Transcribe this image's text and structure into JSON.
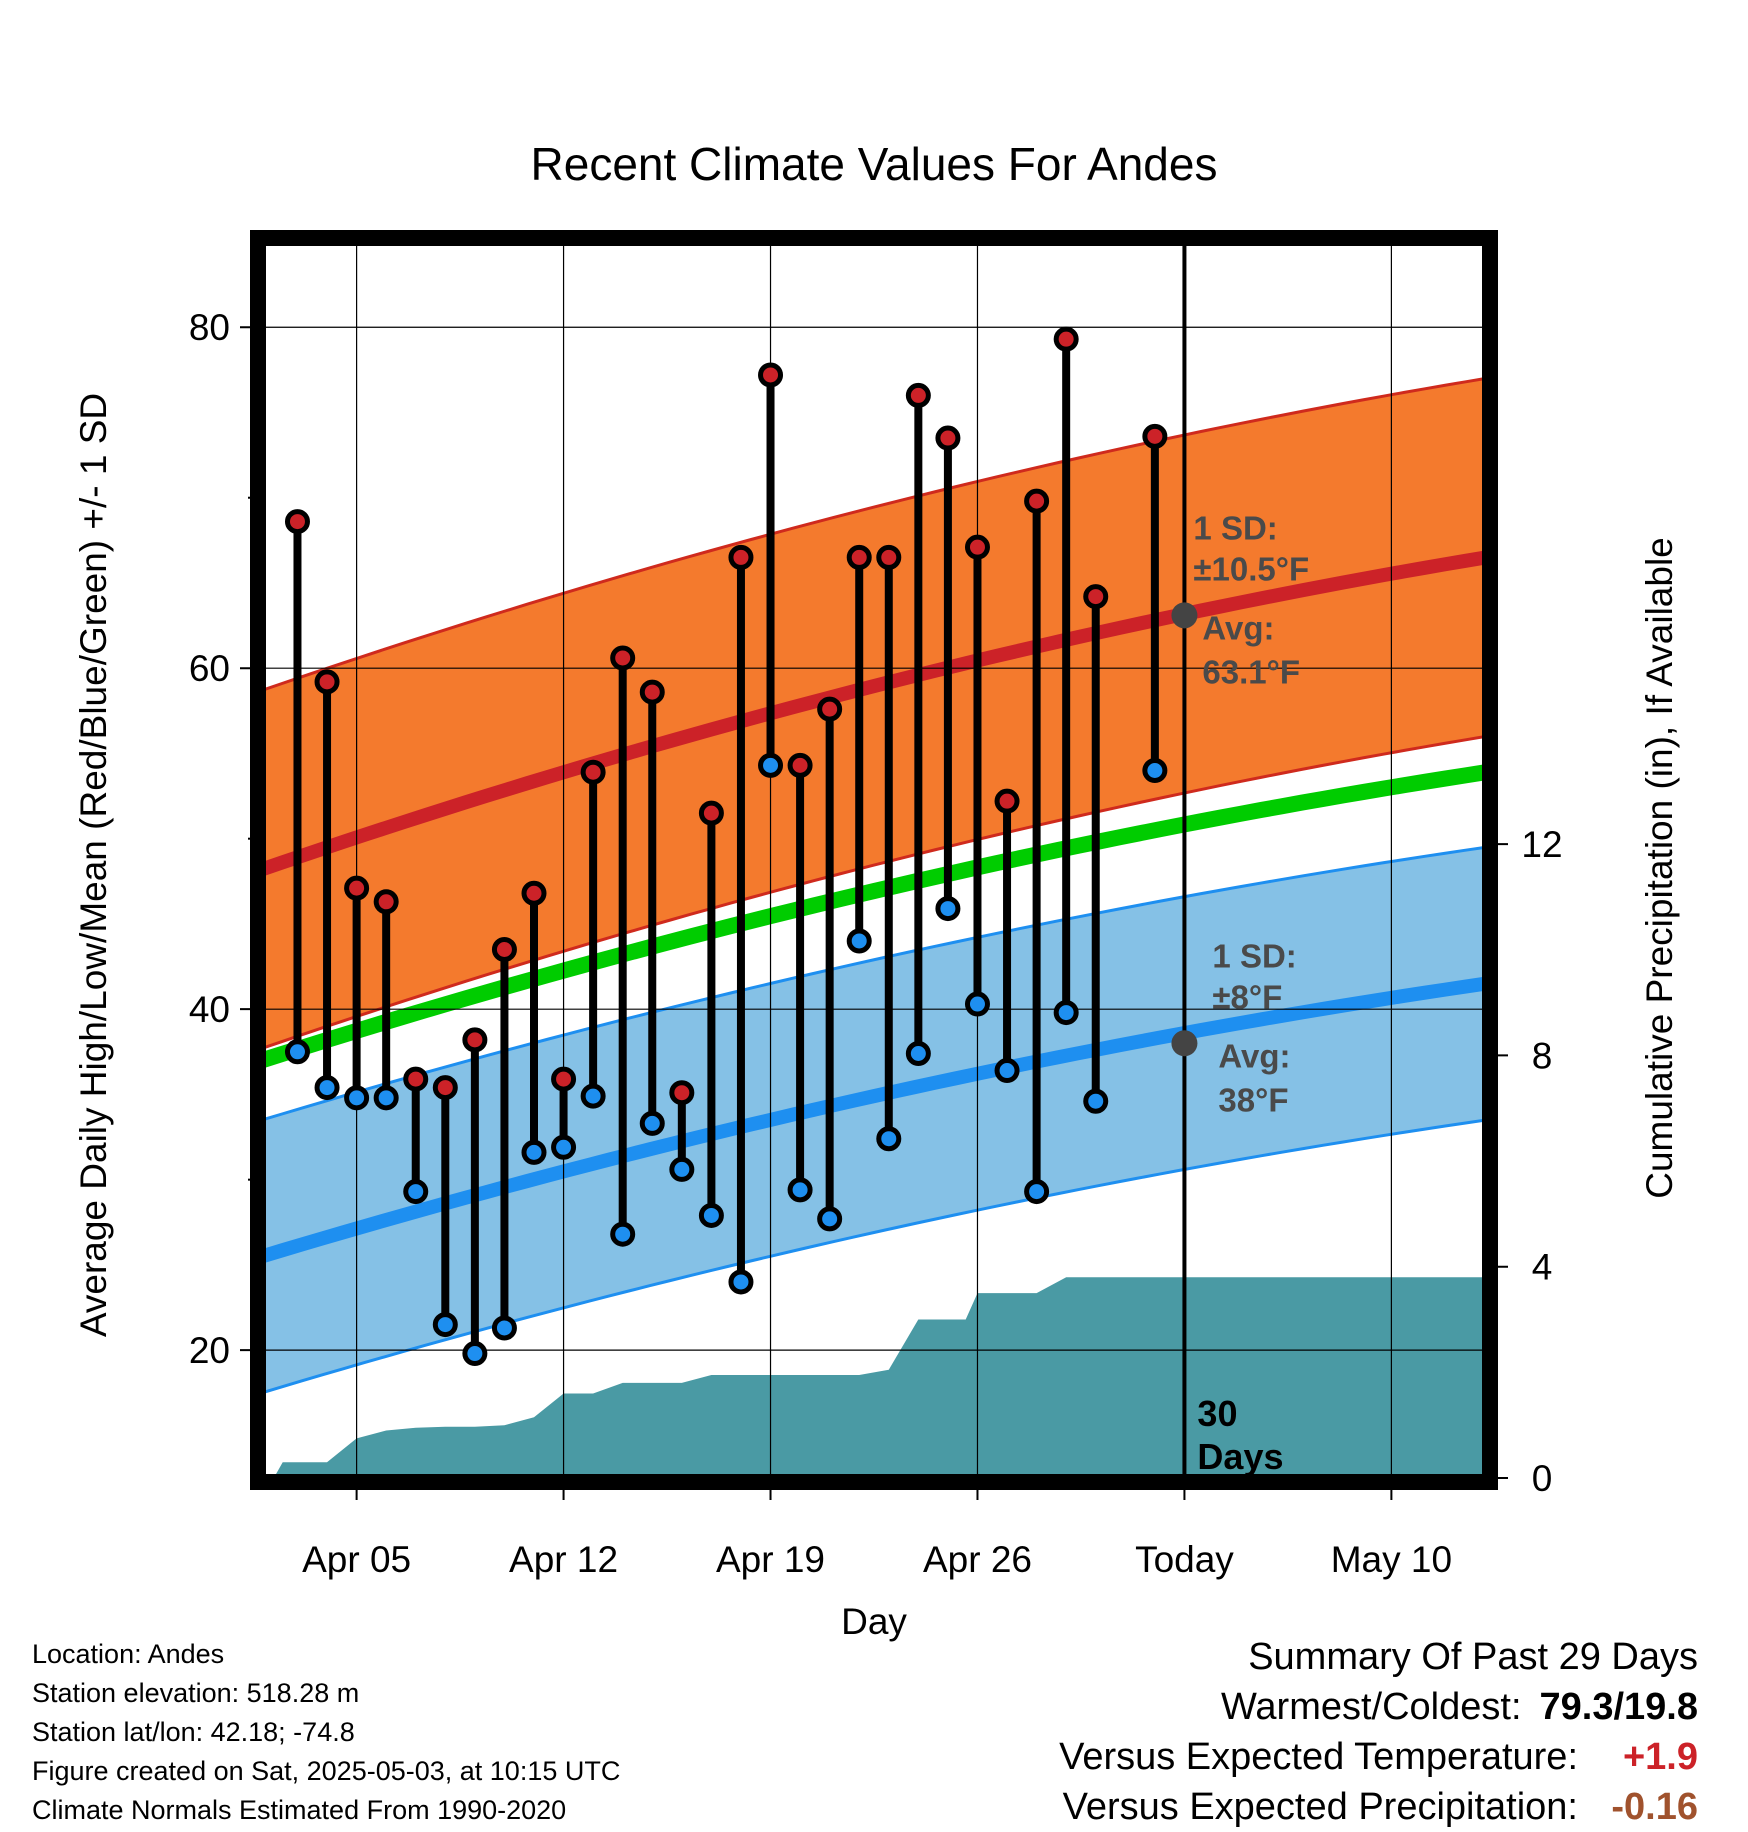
{
  "chart_data": {
    "type": "climate",
    "title": "Recent Climate Values For Andes",
    "xlabel": "Day",
    "ylabel_left": "Average Daily High/Low/Mean (Red/Blue/Green) +/- 1 SD",
    "ylabel_right": "Cumulative Precipitation (in), If Available",
    "x_ticks": [
      {
        "day": 4,
        "label": "Apr 05"
      },
      {
        "day": 11,
        "label": "Apr 12"
      },
      {
        "day": 18,
        "label": "Apr 19"
      },
      {
        "day": 25,
        "label": "Apr 26"
      },
      {
        "day": 32,
        "label": "Today"
      },
      {
        "day": 39,
        "label": "May 10"
      }
    ],
    "y_left_ticks": [
      20,
      40,
      60,
      80
    ],
    "y_right_ticks": [
      0,
      4,
      8,
      12
    ],
    "xlim": [
      0.8,
      42.2
    ],
    "ylim_left": [
      12.5,
      85
    ],
    "ylim_right": [
      0,
      23.4
    ],
    "grid": true,
    "today_day": 32,
    "today_label": "30\nDays",
    "normals": {
      "x": [
        0.8,
        42.2
      ],
      "high_mean": [
        48.2,
        66.5
      ],
      "high_sd": 10.5,
      "mean": [
        37.0,
        53.9
      ],
      "low_mean": [
        25.5,
        41.5
      ],
      "low_sd": 8,
      "high_label_sd": "1 SD:\n±10.5°F",
      "high_label_avg": "Avg:\n63.1°F",
      "high_avg_value": 63.1,
      "low_label_sd": "1 SD:\n±8°F",
      "low_label_avg": "Avg:\n38°F",
      "low_avg_value": 38
    },
    "series": [
      {
        "name": "High",
        "days": [
          2,
          3,
          4,
          5,
          6,
          7,
          8,
          9,
          10,
          11,
          12,
          13,
          14,
          15,
          16,
          17,
          18,
          19,
          20,
          21,
          22,
          23,
          24,
          25,
          26,
          27,
          28,
          29,
          30,
          31
        ],
        "values": [
          68.6,
          59.2,
          47.1,
          46.3,
          35.9,
          35.4,
          38.2,
          43.5,
          46.8,
          35.9,
          53.9,
          60.6,
          58.6,
          35.1,
          51.5,
          66.5,
          77.2,
          54.3,
          57.6,
          66.5,
          66.5,
          76.0,
          73.5,
          67.1,
          52.2,
          69.8,
          79.3,
          64.2,
          null,
          73.6
        ]
      },
      {
        "name": "Low",
        "days": [
          2,
          3,
          4,
          5,
          6,
          7,
          8,
          9,
          10,
          11,
          12,
          13,
          14,
          15,
          16,
          17,
          18,
          19,
          20,
          21,
          22,
          23,
          24,
          25,
          26,
          27,
          28,
          29,
          30,
          31
        ],
        "values": [
          37.5,
          35.4,
          34.8,
          34.8,
          29.3,
          21.5,
          19.8,
          21.3,
          31.6,
          31.9,
          34.9,
          26.8,
          33.3,
          30.6,
          27.9,
          24.0,
          54.3,
          29.4,
          27.7,
          44.0,
          32.4,
          37.4,
          45.9,
          40.3,
          36.4,
          29.3,
          39.8,
          34.6,
          null,
          54.0
        ]
      },
      {
        "name": "Cumulative Precipitation",
        "days": [
          1.2,
          1.5,
          3,
          4,
          5,
          6,
          7,
          8,
          9,
          10,
          11,
          12,
          13,
          14,
          15,
          16,
          17,
          18,
          19,
          20,
          21,
          22,
          23,
          24,
          24.6,
          25,
          26,
          27,
          28,
          29,
          30,
          31,
          32,
          42.2
        ],
        "values": [
          0,
          0.3,
          0.3,
          0.75,
          0.9,
          0.95,
          0.97,
          0.97,
          1.0,
          1.15,
          1.6,
          1.6,
          1.8,
          1.8,
          1.8,
          1.95,
          1.95,
          1.95,
          1.95,
          1.95,
          1.95,
          2.05,
          3.0,
          3.0,
          3.0,
          3.5,
          3.5,
          3.5,
          3.8,
          3.8,
          3.8,
          3.8,
          3.8,
          3.8
        ]
      }
    ],
    "colors": {
      "high_band": "#f47a2d",
      "high_band_edge": "#cf2a1d",
      "high_line": "#cc2228",
      "mean_line": "#00cc00",
      "low_band": "#85c1e6",
      "low_band_edge": "#1e8ff0",
      "low_line": "#1e8ff0",
      "precip": "#4a9aa4",
      "high_marker": "#cc2228",
      "low_marker": "#1e8ff0",
      "avg_marker": "#444444",
      "annot_text": "#4a4a4a",
      "positive": "#cc2228",
      "negative": "#a0522d"
    }
  },
  "footer": {
    "location": "Location: Andes",
    "elevation": "Station elevation: 518.28 m",
    "latlon": "Station lat/lon: 42.18; -74.8",
    "created": "Figure created on Sat, 2025-05-03, at 10:15 UTC",
    "normals": "Climate Normals Estimated From 1990-2020"
  },
  "summary": {
    "title": "Summary Of Past 29 Days",
    "warm_cold_label": "Warmest/Coldest:",
    "warm_cold_value": "79.3/19.8",
    "temp_label": "Versus Expected Temperature:",
    "temp_value": "+1.9",
    "precip_label": "Versus Expected Precipitation:",
    "precip_value": "-0.16"
  }
}
